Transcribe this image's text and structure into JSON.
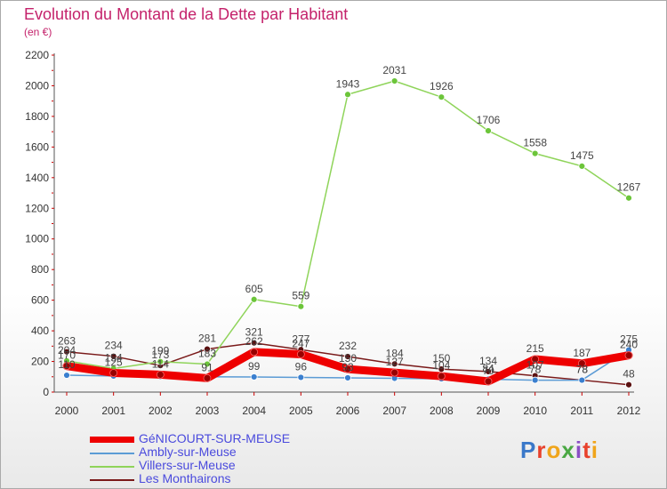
{
  "header": {
    "title": "Evolution du Montant de la Dette par Habitant",
    "subtitle": "(en €)"
  },
  "logo": {
    "text": "Proxiti",
    "colors": [
      "#3a78c9",
      "#e8412c",
      "#f0a51b",
      "#4aa843",
      "#8a4fc4",
      "#e8412c",
      "#f0a51b"
    ]
  },
  "chart_data": {
    "type": "line",
    "x": [
      2000,
      2001,
      2002,
      2003,
      2004,
      2005,
      2006,
      2007,
      2008,
      2009,
      2010,
      2011,
      2012
    ],
    "ylim": [
      0,
      2200
    ],
    "yticks": [
      0,
      200,
      400,
      600,
      800,
      1000,
      1200,
      1400,
      1600,
      1800,
      2000,
      2200
    ],
    "grid": false,
    "legend_position": "bottom-left",
    "series": [
      {
        "name": "GéNICOURT-SUR-MEUSE",
        "color": "#ee0000",
        "values": [
          170,
          125,
          114,
          91,
          262,
          247,
          150,
          127,
          104,
          70,
          215,
          187,
          240
        ],
        "labels": [
          "170",
          "125",
          "114",
          "91",
          "262",
          "247",
          "150",
          "127",
          "104",
          "70",
          "215",
          "187",
          "240"
        ]
      },
      {
        "name": "Ambly-sur-Meuse",
        "color": "#5b9bd5",
        "values": [
          110,
          105,
          102,
          100,
          99,
          96,
          93,
          90,
          87,
          84,
          78,
          78,
          275
        ],
        "labels": [
          "110",
          "",
          "",
          "",
          "99",
          "96",
          "93",
          "",
          "",
          "84",
          "78",
          "78",
          "275"
        ]
      },
      {
        "name": "Villers-sur-Meuse",
        "color": "#8fd45a",
        "values": [
          204,
          154,
          199,
          183,
          605,
          559,
          1943,
          2031,
          1926,
          1706,
          1558,
          1475,
          1267
        ],
        "labels": [
          "204",
          "154",
          "199",
          "183",
          "605",
          "559",
          "1943",
          "2031",
          "1926",
          "1706",
          "1558",
          "1475",
          "1267"
        ]
      },
      {
        "name": "Les Monthairons",
        "color": "#7a1a1a",
        "values": [
          263,
          234,
          173,
          281,
          321,
          277,
          232,
          184,
          150,
          134,
          107,
          78,
          48
        ],
        "labels": [
          "263",
          "234",
          "173",
          "281",
          "321",
          "277",
          "232",
          "184",
          "150",
          "134",
          "107",
          "78",
          "48"
        ]
      }
    ]
  }
}
